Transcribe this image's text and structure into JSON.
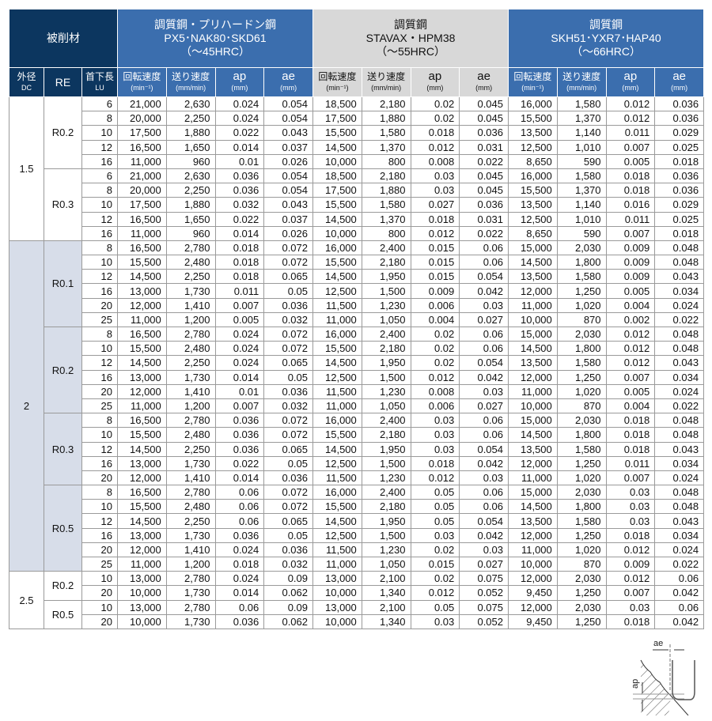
{
  "header": {
    "material": "被削材",
    "dc": "外径",
    "dc_sub": "DC",
    "re": "RE",
    "lu": "首下長",
    "lu_sub": "LU",
    "groups": [
      {
        "l1": "調質鋼・プリハードン鋼",
        "l2": "PX5･NAK80･SKD61",
        "l3": "（～45HRC）"
      },
      {
        "l1": "調質鋼",
        "l2": "STAVAX・HPM38",
        "l3": "（～55HRC）"
      },
      {
        "l1": "調質鋼",
        "l2": "SKH51･YXR7･HAP40",
        "l3": "（～66HRC）"
      }
    ],
    "cols": [
      {
        "t": "回転速度",
        "u": "(min⁻¹)"
      },
      {
        "t": "送り速度",
        "u": "(mm/min)"
      },
      {
        "t": "ap",
        "u": "(mm)"
      },
      {
        "t": "ae",
        "u": "(mm)"
      }
    ]
  },
  "diagram": {
    "ae": "ae",
    "ap": "ap"
  },
  "colors": {
    "navy": "#0c365f",
    "blue": "#3b6eae",
    "gray": "#d8d8d8",
    "shade": "#d7dde9"
  },
  "groups": [
    {
      "dc": "1.5",
      "shaded": false,
      "re": [
        {
          "re": "R0.2",
          "rows": [
            {
              "lu": "6",
              "v": [
                "21,000",
                "2,630",
                "0.024",
                "0.054",
                "18,500",
                "2,180",
                "0.02",
                "0.045",
                "16,000",
                "1,580",
                "0.012",
                "0.036"
              ]
            },
            {
              "lu": "8",
              "v": [
                "20,000",
                "2,250",
                "0.024",
                "0.054",
                "17,500",
                "1,880",
                "0.02",
                "0.045",
                "15,500",
                "1,370",
                "0.012",
                "0.036"
              ]
            },
            {
              "lu": "10",
              "v": [
                "17,500",
                "1,880",
                "0.022",
                "0.043",
                "15,500",
                "1,580",
                "0.018",
                "0.036",
                "13,500",
                "1,140",
                "0.011",
                "0.029"
              ]
            },
            {
              "lu": "12",
              "v": [
                "16,500",
                "1,650",
                "0.014",
                "0.037",
                "14,500",
                "1,370",
                "0.012",
                "0.031",
                "12,500",
                "1,010",
                "0.007",
                "0.025"
              ]
            },
            {
              "lu": "16",
              "v": [
                "11,000",
                "960",
                "0.01",
                "0.026",
                "10,000",
                "800",
                "0.008",
                "0.022",
                "8,650",
                "590",
                "0.005",
                "0.018"
              ]
            }
          ]
        },
        {
          "re": "R0.3",
          "rows": [
            {
              "lu": "6",
              "v": [
                "21,000",
                "2,630",
                "0.036",
                "0.054",
                "18,500",
                "2,180",
                "0.03",
                "0.045",
                "16,000",
                "1,580",
                "0.018",
                "0.036"
              ]
            },
            {
              "lu": "8",
              "v": [
                "20,000",
                "2,250",
                "0.036",
                "0.054",
                "17,500",
                "1,880",
                "0.03",
                "0.045",
                "15,500",
                "1,370",
                "0.018",
                "0.036"
              ]
            },
            {
              "lu": "10",
              "v": [
                "17,500",
                "1,880",
                "0.032",
                "0.043",
                "15,500",
                "1,580",
                "0.027",
                "0.036",
                "13,500",
                "1,140",
                "0.016",
                "0.029"
              ]
            },
            {
              "lu": "12",
              "v": [
                "16,500",
                "1,650",
                "0.022",
                "0.037",
                "14,500",
                "1,370",
                "0.018",
                "0.031",
                "12,500",
                "1,010",
                "0.011",
                "0.025"
              ]
            },
            {
              "lu": "16",
              "v": [
                "11,000",
                "960",
                "0.014",
                "0.026",
                "10,000",
                "800",
                "0.012",
                "0.022",
                "8,650",
                "590",
                "0.007",
                "0.018"
              ]
            }
          ]
        }
      ]
    },
    {
      "dc": "2",
      "shaded": true,
      "re": [
        {
          "re": "R0.1",
          "rows": [
            {
              "lu": "8",
              "v": [
                "16,500",
                "2,780",
                "0.018",
                "0.072",
                "16,000",
                "2,400",
                "0.015",
                "0.06",
                "15,000",
                "2,030",
                "0.009",
                "0.048"
              ]
            },
            {
              "lu": "10",
              "v": [
                "15,500",
                "2,480",
                "0.018",
                "0.072",
                "15,500",
                "2,180",
                "0.015",
                "0.06",
                "14,500",
                "1,800",
                "0.009",
                "0.048"
              ]
            },
            {
              "lu": "12",
              "v": [
                "14,500",
                "2,250",
                "0.018",
                "0.065",
                "14,500",
                "1,950",
                "0.015",
                "0.054",
                "13,500",
                "1,580",
                "0.009",
                "0.043"
              ]
            },
            {
              "lu": "16",
              "v": [
                "13,000",
                "1,730",
                "0.011",
                "0.05",
                "12,500",
                "1,500",
                "0.009",
                "0.042",
                "12,000",
                "1,250",
                "0.005",
                "0.034"
              ]
            },
            {
              "lu": "20",
              "v": [
                "12,000",
                "1,410",
                "0.007",
                "0.036",
                "11,500",
                "1,230",
                "0.006",
                "0.03",
                "11,000",
                "1,020",
                "0.004",
                "0.024"
              ]
            },
            {
              "lu": "25",
              "v": [
                "11,000",
                "1,200",
                "0.005",
                "0.032",
                "11,000",
                "1,050",
                "0.004",
                "0.027",
                "10,000",
                "870",
                "0.002",
                "0.022"
              ]
            }
          ]
        },
        {
          "re": "R0.2",
          "rows": [
            {
              "lu": "8",
              "v": [
                "16,500",
                "2,780",
                "0.024",
                "0.072",
                "16,000",
                "2,400",
                "0.02",
                "0.06",
                "15,000",
                "2,030",
                "0.012",
                "0.048"
              ]
            },
            {
              "lu": "10",
              "v": [
                "15,500",
                "2,480",
                "0.024",
                "0.072",
                "15,500",
                "2,180",
                "0.02",
                "0.06",
                "14,500",
                "1,800",
                "0.012",
                "0.048"
              ]
            },
            {
              "lu": "12",
              "v": [
                "14,500",
                "2,250",
                "0.024",
                "0.065",
                "14,500",
                "1,950",
                "0.02",
                "0.054",
                "13,500",
                "1,580",
                "0.012",
                "0.043"
              ]
            },
            {
              "lu": "16",
              "v": [
                "13,000",
                "1,730",
                "0.014",
                "0.05",
                "12,500",
                "1,500",
                "0.012",
                "0.042",
                "12,000",
                "1,250",
                "0.007",
                "0.034"
              ]
            },
            {
              "lu": "20",
              "v": [
                "12,000",
                "1,410",
                "0.01",
                "0.036",
                "11,500",
                "1,230",
                "0.008",
                "0.03",
                "11,000",
                "1,020",
                "0.005",
                "0.024"
              ]
            },
            {
              "lu": "25",
              "v": [
                "11,000",
                "1,200",
                "0.007",
                "0.032",
                "11,000",
                "1,050",
                "0.006",
                "0.027",
                "10,000",
                "870",
                "0.004",
                "0.022"
              ]
            }
          ]
        },
        {
          "re": "R0.3",
          "rows": [
            {
              "lu": "8",
              "v": [
                "16,500",
                "2,780",
                "0.036",
                "0.072",
                "16,000",
                "2,400",
                "0.03",
                "0.06",
                "15,000",
                "2,030",
                "0.018",
                "0.048"
              ]
            },
            {
              "lu": "10",
              "v": [
                "15,500",
                "2,480",
                "0.036",
                "0.072",
                "15,500",
                "2,180",
                "0.03",
                "0.06",
                "14,500",
                "1,800",
                "0.018",
                "0.048"
              ]
            },
            {
              "lu": "12",
              "v": [
                "14,500",
                "2,250",
                "0.036",
                "0.065",
                "14,500",
                "1,950",
                "0.03",
                "0.054",
                "13,500",
                "1,580",
                "0.018",
                "0.043"
              ]
            },
            {
              "lu": "16",
              "v": [
                "13,000",
                "1,730",
                "0.022",
                "0.05",
                "12,500",
                "1,500",
                "0.018",
                "0.042",
                "12,000",
                "1,250",
                "0.011",
                "0.034"
              ]
            },
            {
              "lu": "20",
              "v": [
                "12,000",
                "1,410",
                "0.014",
                "0.036",
                "11,500",
                "1,230",
                "0.012",
                "0.03",
                "11,000",
                "1,020",
                "0.007",
                "0.024"
              ]
            }
          ]
        },
        {
          "re": "R0.5",
          "rows": [
            {
              "lu": "8",
              "v": [
                "16,500",
                "2,780",
                "0.06",
                "0.072",
                "16,000",
                "2,400",
                "0.05",
                "0.06",
                "15,000",
                "2,030",
                "0.03",
                "0.048"
              ]
            },
            {
              "lu": "10",
              "v": [
                "15,500",
                "2,480",
                "0.06",
                "0.072",
                "15,500",
                "2,180",
                "0.05",
                "0.06",
                "14,500",
                "1,800",
                "0.03",
                "0.048"
              ]
            },
            {
              "lu": "12",
              "v": [
                "14,500",
                "2,250",
                "0.06",
                "0.065",
                "14,500",
                "1,950",
                "0.05",
                "0.054",
                "13,500",
                "1,580",
                "0.03",
                "0.043"
              ]
            },
            {
              "lu": "16",
              "v": [
                "13,000",
                "1,730",
                "0.036",
                "0.05",
                "12,500",
                "1,500",
                "0.03",
                "0.042",
                "12,000",
                "1,250",
                "0.018",
                "0.034"
              ]
            },
            {
              "lu": "20",
              "v": [
                "12,000",
                "1,410",
                "0.024",
                "0.036",
                "11,500",
                "1,230",
                "0.02",
                "0.03",
                "11,000",
                "1,020",
                "0.012",
                "0.024"
              ]
            },
            {
              "lu": "25",
              "v": [
                "11,000",
                "1,200",
                "0.018",
                "0.032",
                "11,000",
                "1,050",
                "0.015",
                "0.027",
                "10,000",
                "870",
                "0.009",
                "0.022"
              ]
            }
          ]
        }
      ]
    },
    {
      "dc": "2.5",
      "shaded": false,
      "re": [
        {
          "re": "R0.2",
          "rows": [
            {
              "lu": "10",
              "v": [
                "13,000",
                "2,780",
                "0.024",
                "0.09",
                "13,000",
                "2,100",
                "0.02",
                "0.075",
                "12,000",
                "2,030",
                "0.012",
                "0.06"
              ]
            },
            {
              "lu": "20",
              "v": [
                "10,000",
                "1,730",
                "0.014",
                "0.062",
                "10,000",
                "1,340",
                "0.012",
                "0.052",
                "9,450",
                "1,250",
                "0.007",
                "0.042"
              ]
            }
          ]
        },
        {
          "re": "R0.5",
          "rows": [
            {
              "lu": "10",
              "v": [
                "13,000",
                "2,780",
                "0.06",
                "0.09",
                "13,000",
                "2,100",
                "0.05",
                "0.075",
                "12,000",
                "2,030",
                "0.03",
                "0.06"
              ]
            },
            {
              "lu": "20",
              "v": [
                "10,000",
                "1,730",
                "0.036",
                "0.062",
                "10,000",
                "1,340",
                "0.03",
                "0.052",
                "9,450",
                "1,250",
                "0.018",
                "0.042"
              ]
            }
          ]
        }
      ]
    }
  ]
}
